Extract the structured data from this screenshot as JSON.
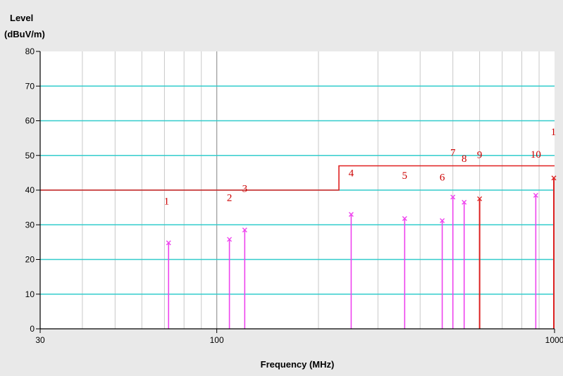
{
  "chart_data": {
    "type": "line",
    "ylabel_line1": "Level",
    "ylabel_line2": "(dBuV/m)",
    "xlabel": "Frequency (MHz)",
    "x_scale": "log",
    "xlim": [
      30,
      1000
    ],
    "ylim": [
      0,
      80
    ],
    "y_ticks": [
      0,
      10,
      20,
      30,
      40,
      50,
      60,
      70,
      80
    ],
    "x_tick_labels": [
      {
        "value": 30,
        "label": "30"
      },
      {
        "value": 100,
        "label": "100"
      },
      {
        "value": 1000,
        "label": "1000"
      }
    ],
    "grid": true,
    "colors": {
      "plot_bg": "#ffffff",
      "major_grid": "#33cccc",
      "minor_grid": "#c8c8c8",
      "limit_line": "#e02020",
      "pink_peak": "#ee44ee",
      "red_peak": "#dd2222",
      "label": "#cc0000"
    },
    "limit_line": {
      "points": [
        [
          30,
          40
        ],
        [
          230,
          40
        ],
        [
          230,
          47
        ],
        [
          1000,
          47
        ]
      ]
    },
    "peaks": [
      {
        "freq": 72,
        "level": 24.8,
        "color": "pink"
      },
      {
        "freq": 109,
        "level": 25.8,
        "color": "pink"
      },
      {
        "freq": 121,
        "level": 28.5,
        "color": "pink"
      },
      {
        "freq": 250,
        "level": 33.0,
        "color": "pink"
      },
      {
        "freq": 360,
        "level": 31.8,
        "color": "pink"
      },
      {
        "freq": 465,
        "level": 31.2,
        "color": "pink"
      },
      {
        "freq": 500,
        "level": 38.0,
        "color": "pink"
      },
      {
        "freq": 540,
        "level": 36.5,
        "color": "pink"
      },
      {
        "freq": 600,
        "level": 37.5,
        "color": "red"
      },
      {
        "freq": 880,
        "level": 38.5,
        "color": "pink"
      },
      {
        "freq": 1000,
        "level": 43.5,
        "color": "red"
      }
    ],
    "markers": [
      {
        "label": "1",
        "freq": 71,
        "level": 35.8
      },
      {
        "label": "2",
        "freq": 109,
        "level": 36.9
      },
      {
        "label": "3",
        "freq": 121,
        "level": 39.5
      },
      {
        "label": "4",
        "freq": 250,
        "level": 44.0
      },
      {
        "label": "5",
        "freq": 360,
        "level": 43.2
      },
      {
        "label": "6",
        "freq": 465,
        "level": 42.7
      },
      {
        "label": "7",
        "freq": 500,
        "level": 49.8
      },
      {
        "label": "8",
        "freq": 540,
        "level": 48.1
      },
      {
        "label": "9",
        "freq": 600,
        "level": 49.2
      },
      {
        "label": "10",
        "freq": 880,
        "level": 49.3
      },
      {
        "label": "1",
        "freq": 992,
        "level": 55.8
      }
    ]
  }
}
